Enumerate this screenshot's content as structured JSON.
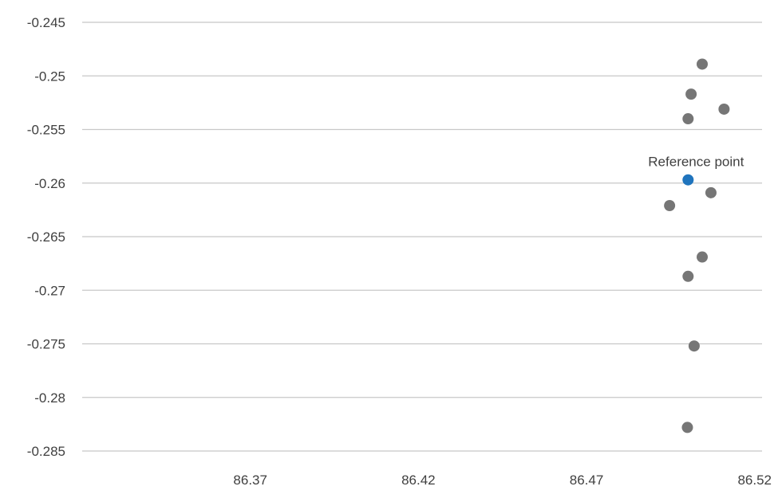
{
  "chart_data": {
    "type": "scatter",
    "title": "",
    "xlabel": "",
    "ylabel": "",
    "xlim": [
      86.32,
      86.5222
    ],
    "ylim": [
      -0.2855,
      -0.2435
    ],
    "x_ticks": [
      {
        "value": 86.37,
        "label": "86.37"
      },
      {
        "value": 86.42,
        "label": "86.42"
      },
      {
        "value": 86.47,
        "label": "86.47"
      },
      {
        "value": 86.52,
        "label": "86.52"
      }
    ],
    "y_ticks": [
      {
        "value": -0.245,
        "label": "-0.245"
      },
      {
        "value": -0.25,
        "label": "-0.25"
      },
      {
        "value": -0.255,
        "label": "-0.255"
      },
      {
        "value": -0.26,
        "label": "-0.26"
      },
      {
        "value": -0.265,
        "label": "-0.265"
      },
      {
        "value": -0.27,
        "label": "-0.27"
      },
      {
        "value": -0.275,
        "label": "-0.275"
      },
      {
        "value": -0.28,
        "label": "-0.28"
      },
      {
        "value": -0.285,
        "label": "-0.285"
      }
    ],
    "grid": {
      "horizontal": true,
      "vertical": false
    },
    "legend": "none",
    "series": [
      {
        "color": "#767676",
        "points": [
          {
            "x": 86.5044,
            "y": -0.2489
          },
          {
            "x": 86.5011,
            "y": -0.2517
          },
          {
            "x": 86.5109,
            "y": -0.2531
          },
          {
            "x": 86.5002,
            "y": -0.254
          },
          {
            "x": 86.507,
            "y": -0.2609
          },
          {
            "x": 86.4947,
            "y": -0.2621
          },
          {
            "x": 86.5044,
            "y": -0.2669
          },
          {
            "x": 86.5002,
            "y": -0.2687
          },
          {
            "x": 86.502,
            "y": -0.2752
          },
          {
            "x": 86.5,
            "y": -0.2828
          }
        ]
      },
      {
        "color": "#1f74bd",
        "points": [
          {
            "x": 86.5002,
            "y": -0.2597
          }
        ]
      }
    ],
    "annotations": [
      {
        "text": "Reference point",
        "x": 86.5002,
        "y": -0.2597
      }
    ]
  }
}
